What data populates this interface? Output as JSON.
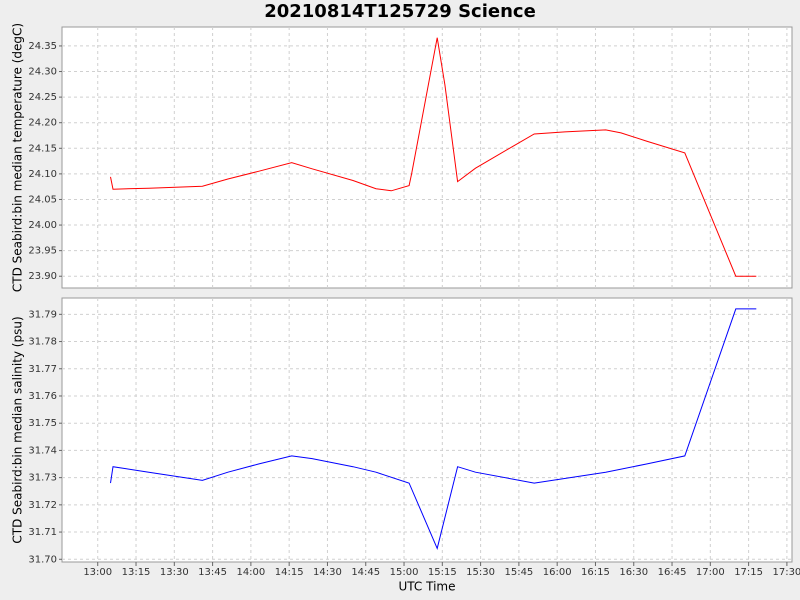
{
  "chart_data": [
    {
      "type": "line",
      "title": "20210814T125729 Science",
      "ylabel": "CTD Seabird:bin median temperature (degC)",
      "x": [
        "13:05",
        "13:06",
        "13:20",
        "13:41",
        "13:51",
        "14:03",
        "14:16",
        "14:24",
        "14:40",
        "14:49",
        "14:55",
        "15:02",
        "15:03",
        "15:13",
        "15:16",
        "15:21",
        "15:28",
        "15:42",
        "15:51",
        "16:03",
        "16:19",
        "16:25",
        "16:35",
        "16:50",
        "17:10",
        "17:18"
      ],
      "values": [
        24.094,
        24.07,
        24.072,
        24.076,
        24.09,
        24.105,
        24.122,
        24.11,
        24.087,
        24.071,
        24.067,
        24.077,
        24.101,
        24.366,
        24.274,
        24.085,
        24.111,
        24.152,
        24.178,
        24.182,
        24.186,
        24.18,
        24.164,
        24.141,
        23.9,
        23.9
      ],
      "color": "#ff0000",
      "ylim": [
        23.877,
        24.387
      ],
      "yticks": [
        {
          "value": 23.9,
          "label": "23.90"
        },
        23.95,
        {
          "value": 24.0,
          "label": "24.00"
        },
        24.05,
        {
          "value": 24.1,
          "label": "24.10"
        },
        24.15,
        {
          "value": 24.2,
          "label": "24.20"
        },
        24.25,
        {
          "value": 24.3,
          "label": "24.30"
        },
        24.35
      ],
      "grid": true
    },
    {
      "type": "line",
      "ylabel": "CTD Seabird:bin median salinity (psu)",
      "xlabel": "UTC Time",
      "x": [
        "13:05",
        "13:06",
        "13:20",
        "13:41",
        "13:51",
        "14:03",
        "14:16",
        "14:24",
        "14:40",
        "14:49",
        "15:02",
        "15:13",
        "15:21",
        "15:28",
        "15:51",
        "16:19",
        "16:35",
        "16:50",
        "17:10",
        "17:18"
      ],
      "values": [
        31.728,
        31.734,
        31.732,
        31.729,
        31.732,
        31.735,
        31.738,
        31.737,
        31.734,
        31.732,
        31.728,
        31.704,
        31.734,
        31.732,
        31.728,
        31.732,
        31.735,
        31.738,
        31.792,
        31.792
      ],
      "color": "#0000ff",
      "xlim": [
        "12:46",
        "17:32"
      ],
      "xticks": [
        "13:00",
        "13:15",
        "13:30",
        "13:45",
        "14:00",
        "14:15",
        "14:30",
        "14:45",
        "15:00",
        "15:15",
        "15:30",
        "15:45",
        "16:00",
        "16:15",
        "16:30",
        "16:45",
        "17:00",
        "17:15",
        "17:30"
      ],
      "ylim": [
        31.699,
        31.796
      ],
      "yticks": [
        {
          "value": 31.7,
          "label": "31.70"
        },
        31.71,
        31.72,
        31.73,
        31.74,
        31.75,
        31.76,
        31.77,
        31.78,
        31.79
      ],
      "grid": true
    }
  ]
}
